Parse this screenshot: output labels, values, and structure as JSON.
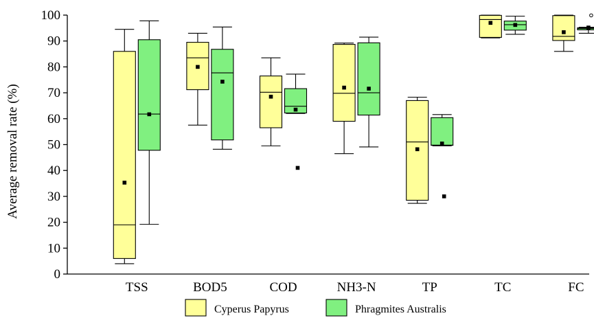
{
  "chart_data": {
    "type": "boxplot",
    "title": "",
    "ylabel": "Average removal rate (%)",
    "ylim": [
      0,
      100
    ],
    "yticks": [
      0,
      10,
      20,
      30,
      40,
      50,
      60,
      70,
      80,
      90,
      100
    ],
    "categories": [
      "TSS",
      "BOD5",
      "COD",
      "NH3-N",
      "TP",
      "TC",
      "FC"
    ],
    "legend_position": "bottom-center",
    "series": [
      {
        "name": "Cyperus Papyrus",
        "color": "#ffff99",
        "boxes": [
          {
            "whisker_low": 4,
            "q1": 6,
            "median": 19,
            "q3": 86,
            "whisker_high": 94.5,
            "mean": 35.3,
            "outliers": []
          },
          {
            "whisker_low": 57.5,
            "q1": 71.2,
            "median": 83.5,
            "q3": 89.5,
            "whisker_high": 93,
            "mean": 80,
            "outliers": []
          },
          {
            "whisker_low": 49.5,
            "q1": 56.5,
            "median": 70.2,
            "q3": 76.5,
            "whisker_high": 83.5,
            "mean": 68.5,
            "outliers": []
          },
          {
            "whisker_low": 46.5,
            "q1": 59,
            "median": 69.8,
            "q3": 88.7,
            "whisker_high": 89.2,
            "mean": 72,
            "outliers": []
          },
          {
            "whisker_low": 27.3,
            "q1": 28.5,
            "median": 51,
            "q3": 67,
            "whisker_high": 68.3,
            "mean": 48.2,
            "outliers": []
          },
          {
            "whisker_low": 91.2,
            "q1": 91.4,
            "median": 98.3,
            "q3": 99.9,
            "whisker_high": 100,
            "mean": 97,
            "outliers": []
          },
          {
            "whisker_low": 86,
            "q1": 90.2,
            "median": 91.8,
            "q3": 99.8,
            "whisker_high": 100,
            "mean": 93.4,
            "outliers": []
          }
        ]
      },
      {
        "name": "Phragmites Australis",
        "color": "#80f080",
        "boxes": [
          {
            "whisker_low": 19.2,
            "q1": 47.8,
            "median": 61.8,
            "q3": 90.5,
            "whisker_high": 97.8,
            "mean": 61.7,
            "outliers": []
          },
          {
            "whisker_low": 48.2,
            "q1": 51.8,
            "median": 77.7,
            "q3": 86.8,
            "whisker_high": 95.4,
            "mean": 74.3,
            "outliers": []
          },
          {
            "whisker_low": 62,
            "q1": 62.2,
            "median": 64.8,
            "q3": 71.6,
            "whisker_high": 77.2,
            "mean": 63.5,
            "outliers": [
              41
            ]
          },
          {
            "whisker_low": 49.1,
            "q1": 61.4,
            "median": 70,
            "q3": 89.3,
            "whisker_high": 91.5,
            "mean": 71.6,
            "outliers": []
          },
          {
            "whisker_low": 49.5,
            "q1": 49.7,
            "median": 49.8,
            "q3": 60.4,
            "whisker_high": 61.6,
            "mean": 50.4,
            "outliers": [
              30
            ]
          },
          {
            "whisker_low": 92.6,
            "q1": 94.2,
            "median": 96.3,
            "q3": 97.7,
            "whisker_high": 99.6,
            "mean": 96.2,
            "outliers": []
          },
          {
            "whisker_low": 93,
            "q1": 94.3,
            "median": 94.8,
            "q3": 95.1,
            "whisker_high": 95.3,
            "mean": 95.2,
            "outliers": [
              99.9
            ]
          }
        ]
      }
    ]
  }
}
